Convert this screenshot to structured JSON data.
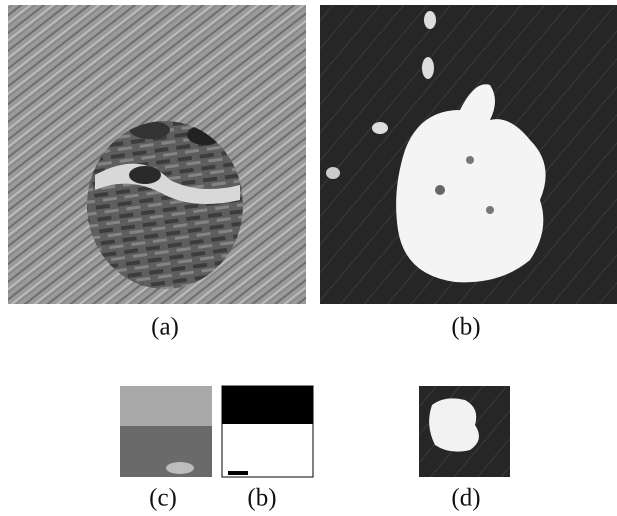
{
  "figure": {
    "panels": [
      {
        "caption": "(a)"
      },
      {
        "caption": "(b)"
      },
      {
        "caption": "(c)"
      },
      {
        "caption": "(b)"
      },
      {
        "caption": "(d)"
      }
    ]
  }
}
